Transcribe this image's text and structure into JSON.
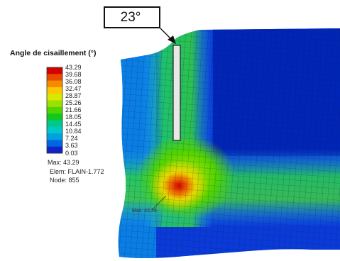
{
  "legend": {
    "title": "Angle de cisaillement (°)",
    "ticks": [
      "43.29",
      "39.68",
      "36.08",
      "32.47",
      "28.87",
      "25.26",
      "21.66",
      "18.05",
      "14.45",
      "10.84",
      "7.24",
      "3.63",
      "0.03"
    ],
    "colors": [
      "#d40000",
      "#e84a00",
      "#f58a00",
      "#fbc800",
      "#d8e800",
      "#9ce000",
      "#52d400",
      "#10c820",
      "#00c88a",
      "#00c8c8",
      "#00a0e0",
      "#0066e0",
      "#1022c8"
    ]
  },
  "info": {
    "max": "Max: 43.29",
    "elem": "Elem: FLAIN-1.772",
    "node": "Node: 855"
  },
  "callout": {
    "label": "23°"
  },
  "max_marker": {
    "label": "Max: 43.29"
  }
}
